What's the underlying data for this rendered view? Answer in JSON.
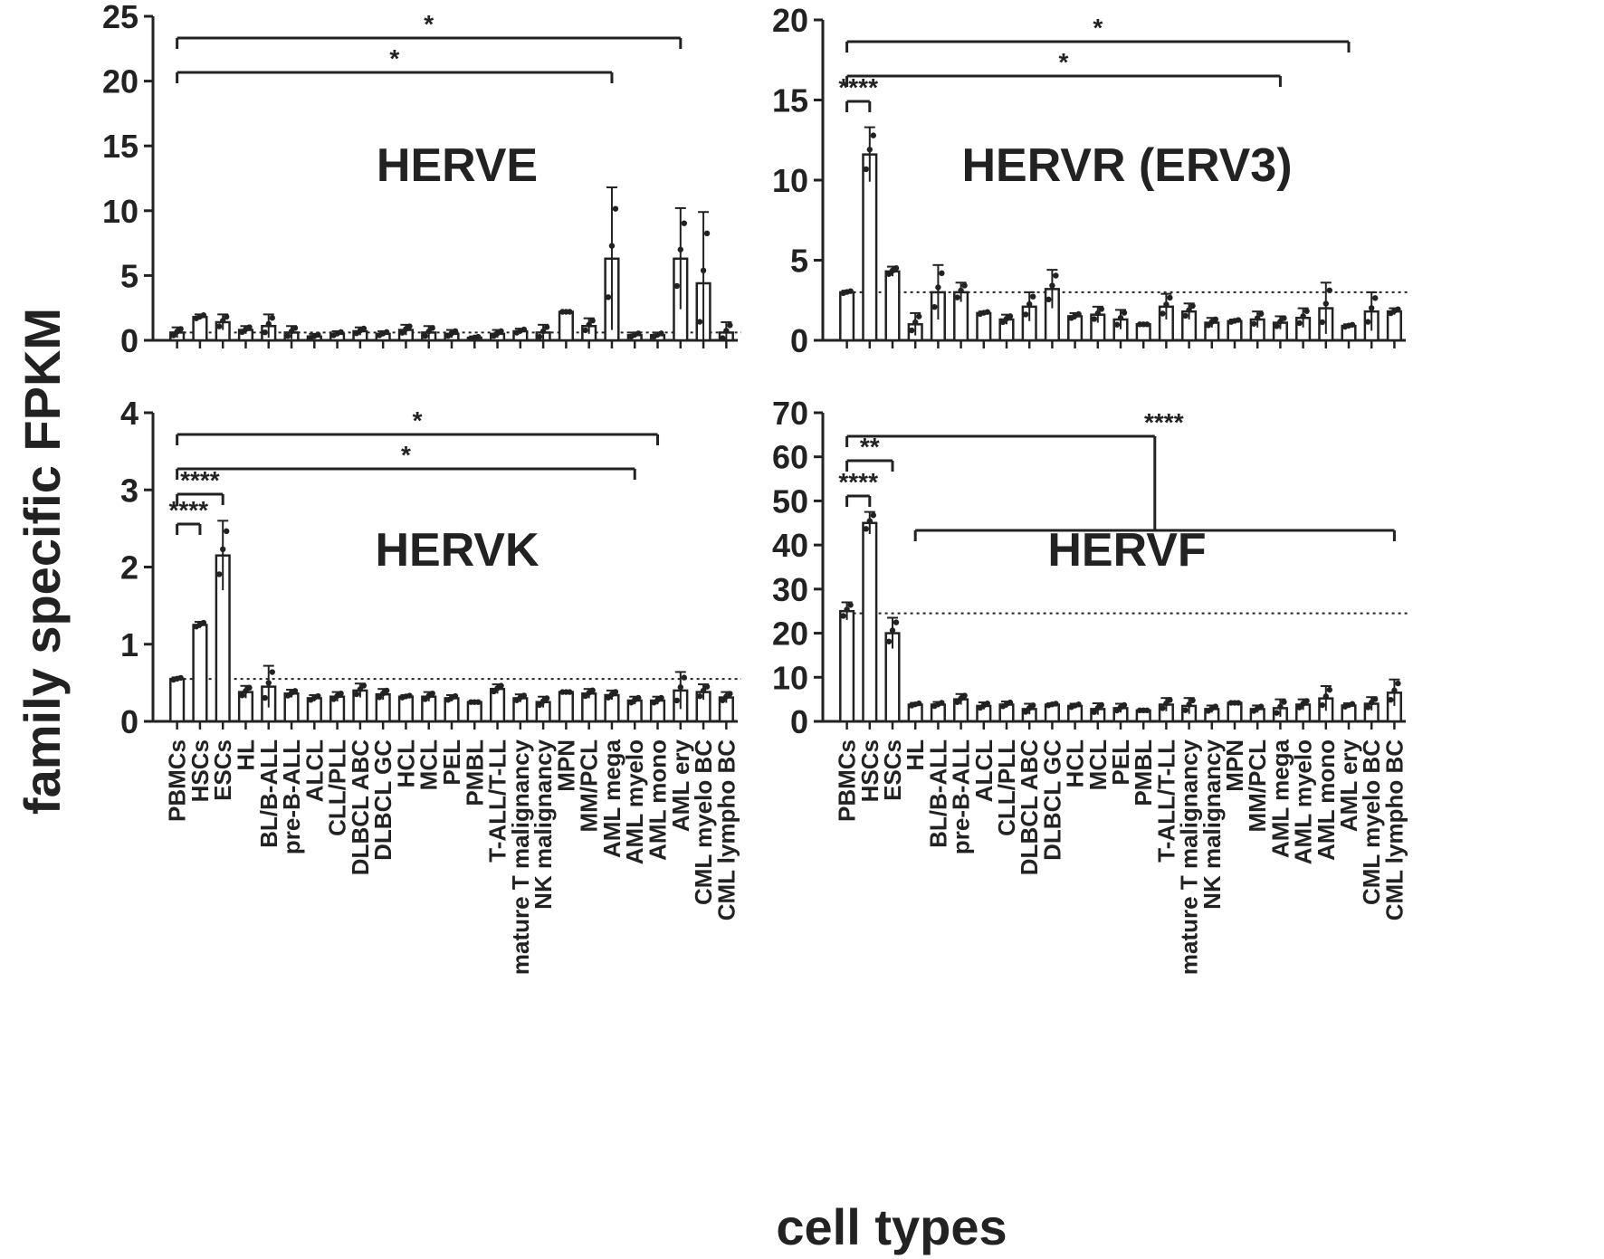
{
  "figure": {
    "ylabel": "family specific FPKM",
    "xlabel": "cell types"
  },
  "chart_data": [
    {
      "type": "bar",
      "title": "HERVE",
      "ylim": [
        0,
        25
      ],
      "yticks": [
        0,
        5,
        10,
        15,
        20,
        25
      ],
      "categories": [
        "PBMCs",
        "HSCs",
        "ESCs",
        "HL",
        "BL/B-ALL",
        "pre-B-ALL",
        "ALCL",
        "CLL/PLL",
        "DLBCL ABC",
        "DLBCL GC",
        "HCL",
        "MCL",
        "PEL",
        "PMBL",
        "T-ALL/T-LL",
        "mature T malignancy",
        "NK malignancy",
        "MPN",
        "MM/PCL",
        "AML mega",
        "AML myelo",
        "AML mono",
        "AML ery",
        "CML myelo BC",
        "CML lympho BC"
      ],
      "values": [
        0.6,
        1.8,
        1.4,
        0.8,
        1.1,
        0.6,
        0.3,
        0.5,
        0.7,
        0.5,
        0.8,
        0.6,
        0.5,
        0.2,
        0.5,
        0.7,
        0.6,
        2.2,
        1.1,
        6.3,
        0.4,
        0.4,
        6.3,
        4.4,
        0.6
      ],
      "errors": [
        0.4,
        0.2,
        0.6,
        0.3,
        0.9,
        0.5,
        0.2,
        0.2,
        0.3,
        0.2,
        0.4,
        0.5,
        0.3,
        0.1,
        0.3,
        0.2,
        0.6,
        0.0,
        0.6,
        5.5,
        0.2,
        0.2,
        3.9,
        5.5,
        0.8
      ],
      "reference_line": 0.6,
      "significance": [
        {
          "from": 0,
          "to": 22,
          "label": "*"
        },
        {
          "from": 0,
          "to": 19,
          "label": "*"
        }
      ]
    },
    {
      "type": "bar",
      "title": "HERVR (ERV3)",
      "ylim": [
        0,
        20
      ],
      "yticks": [
        0,
        5,
        10,
        15,
        20
      ],
      "categories": [
        "PBMCs",
        "HSCs",
        "ESCs",
        "HL",
        "BL/B-ALL",
        "pre-B-ALL",
        "ALCL",
        "CLL/PLL",
        "DLBCL ABC",
        "DLBCL GC",
        "HCL",
        "MCL",
        "PEL",
        "PMBL",
        "T-ALL/T-LL",
        "mature T malignancy",
        "NK malignancy",
        "MPN",
        "MM/PCL",
        "AML mega",
        "AML myelo",
        "AML mono",
        "AML ery",
        "CML myelo BC",
        "CML lympho BC"
      ],
      "values": [
        3.0,
        11.6,
        4.3,
        1.0,
        3.0,
        3.0,
        1.7,
        1.3,
        2.1,
        3.2,
        1.5,
        1.6,
        1.3,
        1.0,
        2.1,
        1.8,
        1.1,
        1.2,
        1.3,
        1.1,
        1.4,
        2.0,
        0.9,
        1.8,
        1.8
      ],
      "errors": [
        0.1,
        1.7,
        0.3,
        0.7,
        1.7,
        0.6,
        0.1,
        0.3,
        0.9,
        1.2,
        0.2,
        0.5,
        0.6,
        0.0,
        0.8,
        0.5,
        0.3,
        0.1,
        0.5,
        0.4,
        0.6,
        1.6,
        0.1,
        1.2,
        0.2
      ],
      "reference_line": 3.0,
      "significance": [
        {
          "from": 0,
          "to": 22,
          "label": "*"
        },
        {
          "from": 0,
          "to": 19,
          "label": "*"
        },
        {
          "from": 0,
          "to": 1,
          "label": "****"
        }
      ]
    },
    {
      "type": "bar",
      "title": "HERVK",
      "ylim": [
        0,
        4
      ],
      "yticks": [
        0,
        1,
        2,
        3,
        4
      ],
      "categories": [
        "PBMCs",
        "HSCs",
        "ESCs",
        "HL",
        "BL/B-ALL",
        "pre-B-ALL",
        "ALCL",
        "CLL/PLL",
        "DLBCL ABC",
        "DLBCL GC",
        "HCL",
        "MCL",
        "PEL",
        "PMBL",
        "T-ALL/T-LL",
        "mature T malignancy",
        "NK malignancy",
        "MPN",
        "MM/PCL",
        "AML mega",
        "AML myelo",
        "AML mono",
        "AML ery",
        "CML myelo BC",
        "CML lympho BC"
      ],
      "values": [
        0.55,
        1.25,
        2.15,
        0.38,
        0.45,
        0.36,
        0.3,
        0.32,
        0.4,
        0.35,
        0.32,
        0.32,
        0.3,
        0.25,
        0.42,
        0.3,
        0.25,
        0.38,
        0.36,
        0.34,
        0.27,
        0.27,
        0.4,
        0.38,
        0.31
      ],
      "errors": [
        0.02,
        0.04,
        0.45,
        0.08,
        0.27,
        0.05,
        0.04,
        0.06,
        0.09,
        0.07,
        0.02,
        0.06,
        0.04,
        0.0,
        0.06,
        0.05,
        0.07,
        0.0,
        0.06,
        0.06,
        0.05,
        0.05,
        0.24,
        0.1,
        0.07
      ],
      "reference_line": 0.55,
      "significance": [
        {
          "from": 0,
          "to": 21,
          "label": "*"
        },
        {
          "from": 0,
          "to": 20,
          "label": "*"
        },
        {
          "from": 0,
          "to": 2,
          "label": "****"
        },
        {
          "from": 0,
          "to": 1,
          "label": "****"
        }
      ]
    },
    {
      "type": "bar",
      "title": "HERVF",
      "ylim": [
        0,
        70
      ],
      "yticks": [
        0,
        10,
        20,
        30,
        40,
        50,
        60,
        70
      ],
      "categories": [
        "PBMCs",
        "HSCs",
        "ESCs",
        "HL",
        "BL/B-ALL",
        "pre-B-ALL",
        "ALCL",
        "CLL/PLL",
        "DLBCL ABC",
        "DLBCL GC",
        "HCL",
        "MCL",
        "PEL",
        "PMBL",
        "T-ALL/T-LL",
        "mature T malignancy",
        "NK malignancy",
        "MPN",
        "MM/PCL",
        "AML mega",
        "AML myelo",
        "AML mono",
        "AML ery",
        "CML myelo BC",
        "CML lympho BC"
      ],
      "values": [
        25,
        45,
        20,
        3.8,
        3.8,
        5.0,
        3.5,
        3.8,
        2.8,
        3.8,
        3.5,
        2.8,
        3.0,
        2.5,
        3.8,
        3.5,
        2.8,
        4.2,
        2.8,
        3.0,
        3.8,
        5.2,
        3.6,
        4.0,
        6.5
      ],
      "errors": [
        2.0,
        2.5,
        3.5,
        0.4,
        0.6,
        1.2,
        0.8,
        0.7,
        1.2,
        0.3,
        0.5,
        1.3,
        1.0,
        0.0,
        1.5,
        1.8,
        0.8,
        0.0,
        0.8,
        2.0,
        1.2,
        2.8,
        0.5,
        1.5,
        3.0
      ],
      "reference_line": 24.5,
      "significance": [
        {
          "from": 0,
          "to": 1,
          "label": "****"
        },
        {
          "from": 0,
          "to": 2,
          "label": "**"
        },
        {
          "from": 0,
          "to": [
            3,
            24
          ],
          "label": "****"
        }
      ]
    }
  ]
}
